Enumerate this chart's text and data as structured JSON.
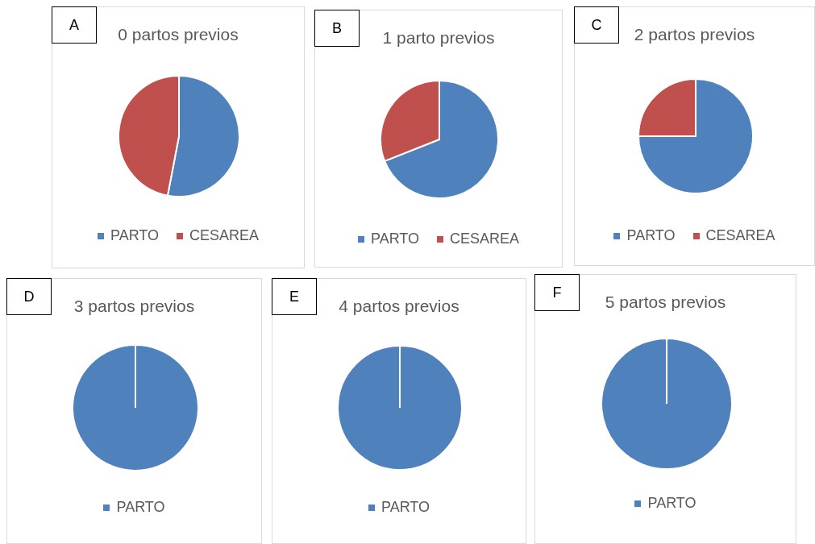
{
  "chart_data": [
    {
      "type": "pie",
      "title": "0 partos previos",
      "categories": [
        "PARTO",
        "CESAREA"
      ],
      "values": [
        53,
        47
      ],
      "colors": [
        "#4f81bd",
        "#c0504d"
      ],
      "legend": "bottom",
      "annotations": [
        "A"
      ]
    },
    {
      "type": "pie",
      "title": "1 parto previos",
      "categories": [
        "PARTO",
        "CESAREA"
      ],
      "values": [
        69,
        31
      ],
      "colors": [
        "#4f81bd",
        "#c0504d"
      ],
      "legend": "bottom",
      "annotations": [
        "B"
      ]
    },
    {
      "type": "pie",
      "title": "2 partos previos",
      "categories": [
        "PARTO",
        "CESAREA"
      ],
      "values": [
        75,
        25
      ],
      "colors": [
        "#4f81bd",
        "#c0504d"
      ],
      "legend": "bottom",
      "annotations": [
        "C"
      ]
    },
    {
      "type": "pie",
      "title": "3 partos previos",
      "categories": [
        "PARTO"
      ],
      "values": [
        100
      ],
      "colors": [
        "#4f81bd"
      ],
      "legend": "bottom",
      "annotations": [
        "D"
      ]
    },
    {
      "type": "pie",
      "title": "4 partos previos",
      "categories": [
        "PARTO"
      ],
      "values": [
        100
      ],
      "colors": [
        "#4f81bd"
      ],
      "legend": "bottom",
      "annotations": [
        "E"
      ]
    },
    {
      "type": "pie",
      "title": "5 partos previos",
      "categories": [
        "PARTO"
      ],
      "values": [
        100
      ],
      "colors": [
        "#4f81bd"
      ],
      "legend": "bottom",
      "annotations": [
        "F"
      ]
    }
  ]
}
